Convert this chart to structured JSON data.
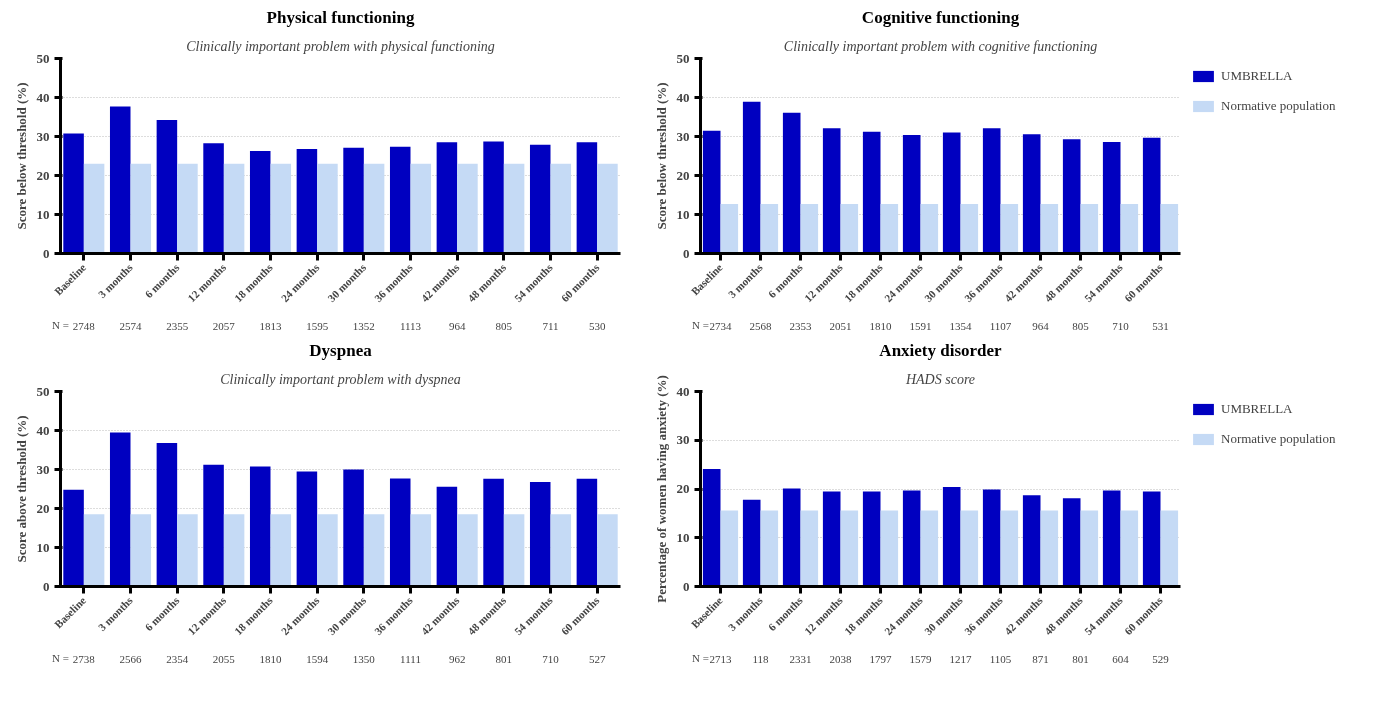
{
  "chart_data": [
    {
      "type": "bar",
      "title": "Physical functioning",
      "subtitle": "Clinically important problem with physical functioning",
      "ylabel": "Score below threshold (%)",
      "categories": [
        "Baseline",
        "3 months",
        "6 months",
        "12 months",
        "18 months",
        "24 months",
        "30 months",
        "36 months",
        "42 months",
        "48 months",
        "54 months",
        "60 months"
      ],
      "series": [
        {
          "color": "#0000c0",
          "values": [
            30.8,
            37.7,
            34.2,
            28.3,
            26.3,
            26.8,
            27.1,
            27.4,
            28.5,
            28.7,
            27.9,
            28.5
          ]
        },
        {
          "color": "#c5daf5",
          "values": [
            23,
            23,
            23,
            23,
            23,
            23,
            23,
            23,
            23,
            23,
            23,
            23
          ]
        }
      ],
      "ylim": [
        0,
        50
      ],
      "yticks": [
        0,
        10,
        20,
        30,
        40,
        50
      ],
      "grid": "y",
      "legend": false,
      "annotations": [
        "N =",
        "2748",
        "2574",
        "2355",
        "2057",
        "1813",
        "1595",
        "1352",
        "1113",
        "964",
        "805",
        "711",
        "530"
      ]
    },
    {
      "type": "bar",
      "title": "Cognitive functioning",
      "subtitle": "Clinically important problem with cognitive functioning",
      "ylabel": "Score below threshold (%)",
      "categories": [
        "Baseline",
        "3 months",
        "6 months",
        "12 months",
        "18 months",
        "24 months",
        "30 months",
        "36 months",
        "42 months",
        "48 months",
        "54 months",
        "60 months"
      ],
      "series": [
        {
          "name": "UMBRELLA",
          "color": "#0000c0",
          "values": [
            31.5,
            38.9,
            36.1,
            32.1,
            31.2,
            30.4,
            31.0,
            32.1,
            30.6,
            29.3,
            28.6,
            29.7
          ]
        },
        {
          "name": "Normative population",
          "color": "#c5daf5",
          "values": [
            12.7,
            12.7,
            12.7,
            12.7,
            12.7,
            12.7,
            12.7,
            12.7,
            12.7,
            12.7,
            12.7,
            12.7
          ]
        }
      ],
      "ylim": [
        0,
        50
      ],
      "yticks": [
        0,
        10,
        20,
        30,
        40,
        50
      ],
      "grid": "y",
      "legend": "right",
      "annotations": [
        "N =",
        "2734",
        "2568",
        "2353",
        "2051",
        "1810",
        "1591",
        "1354",
        "1107",
        "964",
        "805",
        "710",
        "531"
      ]
    },
    {
      "type": "bar",
      "title": "Dyspnea",
      "subtitle": "Clinically important problem with dyspnea",
      "ylabel": "Score above threshold (%)",
      "categories": [
        "Baseline",
        "3 months",
        "6 months",
        "12 months",
        "18 months",
        "24 months",
        "30 months",
        "36 months",
        "42 months",
        "48 months",
        "54 months",
        "60 months"
      ],
      "series": [
        {
          "color": "#0000c0",
          "values": [
            24.8,
            39.5,
            36.8,
            31.2,
            30.8,
            29.5,
            30.0,
            27.7,
            25.6,
            27.6,
            26.8,
            27.6
          ]
        },
        {
          "color": "#c5daf5",
          "values": [
            18.5,
            18.5,
            18.5,
            18.5,
            18.5,
            18.5,
            18.5,
            18.5,
            18.5,
            18.5,
            18.5,
            18.5
          ]
        }
      ],
      "ylim": [
        0,
        50
      ],
      "yticks": [
        0,
        10,
        20,
        30,
        40,
        50
      ],
      "grid": "y",
      "legend": false,
      "annotations": [
        "N =",
        "2738",
        "2566",
        "2354",
        "2055",
        "1810",
        "1594",
        "1350",
        "1111",
        "962",
        "801",
        "710",
        "527"
      ]
    },
    {
      "type": "bar",
      "title": "Anxiety disorder",
      "subtitle": "HADS score",
      "ylabel": "Percentage of women having anxiety (%)",
      "categories": [
        "Baseline",
        "3 months",
        "6 months",
        "12 months",
        "18 months",
        "24 months",
        "30 months",
        "36 months",
        "42 months",
        "48 months",
        "54 months",
        "60 months"
      ],
      "series": [
        {
          "name": "UMBRELLA",
          "color": "#0000c0",
          "values": [
            24.1,
            17.8,
            20.1,
            19.5,
            19.5,
            19.7,
            20.4,
            19.9,
            18.7,
            18.1,
            19.7,
            19.5
          ]
        },
        {
          "name": "Normative population",
          "color": "#c5daf5",
          "values": [
            15.6,
            15.6,
            15.6,
            15.6,
            15.6,
            15.6,
            15.6,
            15.6,
            15.6,
            15.6,
            15.6,
            15.6
          ]
        }
      ],
      "ylim": [
        0,
        40
      ],
      "yticks": [
        0,
        10,
        20,
        30,
        40
      ],
      "grid": "y",
      "legend": "right",
      "annotations": [
        "N =",
        "2713",
        "118",
        "2331",
        "2038",
        "1797",
        "1579",
        "1217",
        "1105",
        "871",
        "801",
        "604",
        "529"
      ]
    }
  ]
}
